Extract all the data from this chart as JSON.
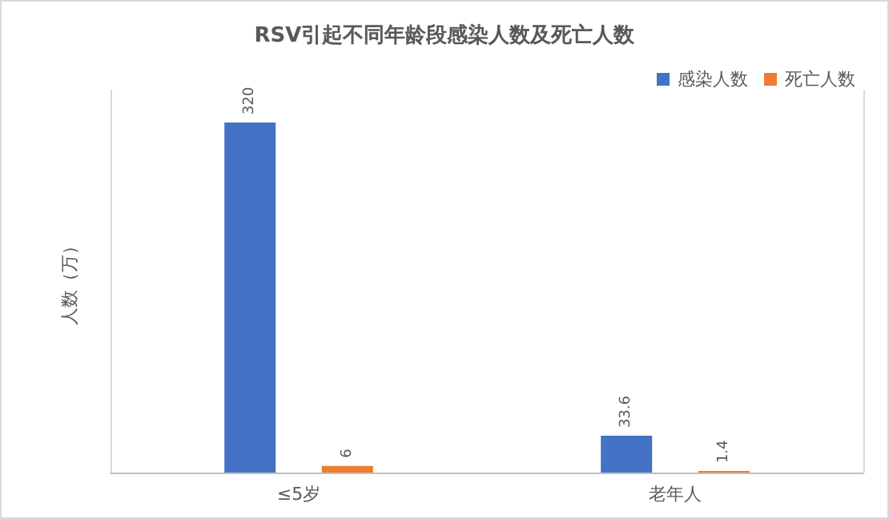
{
  "chart_data": {
    "type": "bar",
    "title": "RSV引起不同年龄段感染人数及死亡人数",
    "ylabel": "人数（万）",
    "categories": [
      "≤5岁",
      "老年人"
    ],
    "series": [
      {
        "name": "感染人数",
        "color": "#4472c4",
        "values": [
          320,
          33.6
        ]
      },
      {
        "name": "死亡人数",
        "color": "#ed7d31",
        "values": [
          6,
          1.4
        ]
      }
    ],
    "data_labels": true,
    "legend": "top right",
    "grid": "x",
    "tick_labels": "x"
  }
}
